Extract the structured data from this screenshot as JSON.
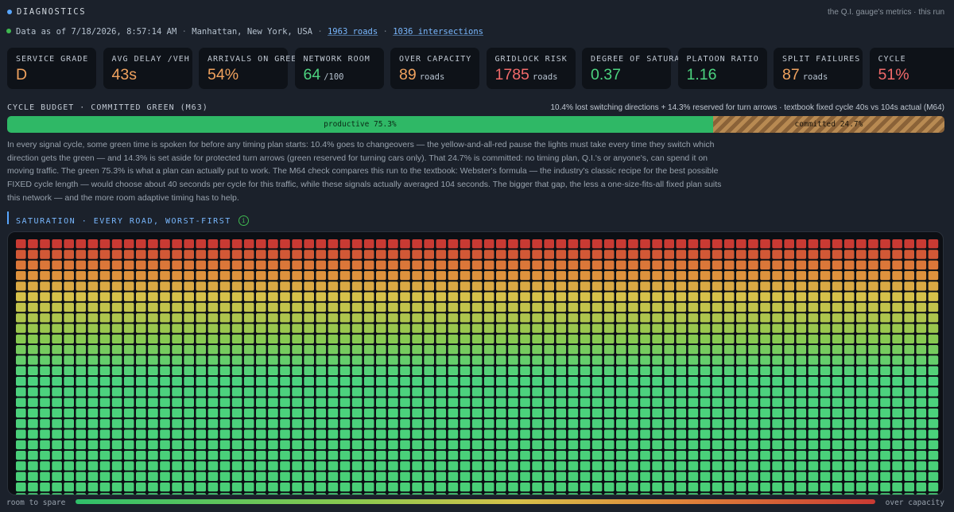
{
  "header": {
    "title": "DIAGNOSTICS",
    "right_text": "the Q.I. gauge's metrics · this run"
  },
  "info": {
    "data_as_of": "Data as of 7/18/2026, 8:57:14 AM",
    "location": "Manhattan, New York, USA",
    "roads": "1963 roads",
    "intersections": "1036 intersections",
    "separator": "·"
  },
  "kpis": [
    {
      "label": "SERVICE GRADE",
      "value": "D",
      "unit": "",
      "color": "#f0a25e"
    },
    {
      "label": "AVG DELAY /VEH",
      "value": "43s",
      "unit": "",
      "color": "#f0a25e"
    },
    {
      "label": "ARRIVALS ON GREEN",
      "value": "54%",
      "unit": "",
      "color": "#f0a25e"
    },
    {
      "label": "NETWORK ROOM",
      "value": "64",
      "unit": "/100",
      "color": "#4cd37f"
    },
    {
      "label": "OVER CAPACITY",
      "value": "89",
      "unit": "roads",
      "color": "#f0a25e"
    },
    {
      "label": "GRIDLOCK RISK",
      "value": "1785",
      "unit": "roads",
      "color": "#f26a6a"
    },
    {
      "label": "DEGREE OF SATURATION",
      "value": "0.37",
      "unit": "",
      "color": "#4cd37f"
    },
    {
      "label": "PLATOON RATIO",
      "value": "1.16",
      "unit": "",
      "color": "#4cd37f"
    },
    {
      "label": "SPLIT FAILURES",
      "value": "87",
      "unit": "roads",
      "color": "#f0a25e"
    },
    {
      "label": "CYCLE",
      "value": "51%",
      "unit": "",
      "color": "#f26a6a"
    }
  ],
  "budget": {
    "title": "CYCLE BUDGET · COMMITTED GREEN (M63)",
    "summary": "10.4% lost switching directions + 14.3% reserved for turn arrows · textbook fixed cycle 40s vs 104s actual (M64)",
    "productive_label": "productive 75.3%",
    "productive_pct": 75.3,
    "committed_label": "committed 24.7%",
    "committed_pct": 24.7,
    "explanation": "In every signal cycle, some green time is spoken for before any timing plan starts: 10.4% goes to changeovers — the yellow-and-all-red pause the lights must take every time they switch which direction gets the green — and 14.3% is set aside for protected turn arrows (green reserved for turning cars only). That 24.7% is committed: no timing plan, Q.I.'s or anyone's, can spend it on moving traffic. The green 75.3% is what a plan can actually put to work. The M64 check compares this run to the textbook: Webster's formula — the industry's classic recipe for the best possible FIXED cycle length — would choose about 40 seconds per cycle for this traffic, while these signals actually averaged 104 seconds. The bigger that gap, the less a one-size-fits-all fixed plan suits this network — and the more room adaptive timing has to help."
  },
  "saturation": {
    "title": "SATURATION · EVERY ROAD, WORST-FIRST",
    "info_icon": "i",
    "road_count": 1963,
    "legend_left": "room to spare",
    "legend_right": "over capacity"
  }
}
